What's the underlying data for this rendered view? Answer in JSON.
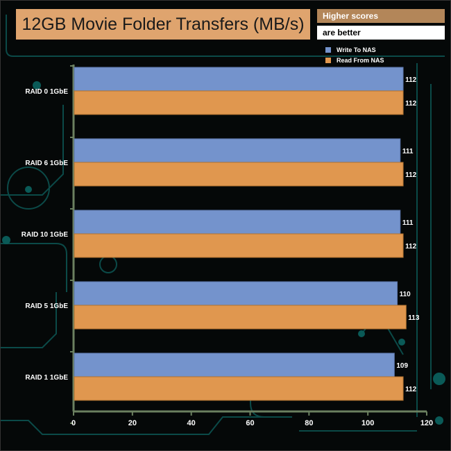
{
  "header": {
    "title": "12GB Movie Folder Transfers (MB/s)",
    "note_line1": "Higher scores",
    "note_line2": "are better"
  },
  "chart_data": {
    "type": "bar",
    "orientation": "horizontal",
    "title": "12GB Movie Folder Transfers (MB/s)",
    "categories": [
      "RAID 0 1GbE",
      "RAID 6 1GbE",
      "RAID 10 1GbE",
      "RAID 5 1GbE",
      "RAID 1 1GbE"
    ],
    "series": [
      {
        "name": "Write To NAS",
        "color": "#7493cc",
        "values": [
          112,
          111,
          111,
          110,
          109
        ]
      },
      {
        "name": "Read From NAS",
        "color": "#e0974f",
        "values": [
          112,
          112,
          112,
          113,
          112
        ]
      }
    ],
    "xlim": [
      0,
      120
    ],
    "xticks": [
      0,
      20,
      40,
      60,
      80,
      100,
      120
    ],
    "legend": "top-right",
    "grid": false,
    "axis_color": "#6b8060"
  }
}
